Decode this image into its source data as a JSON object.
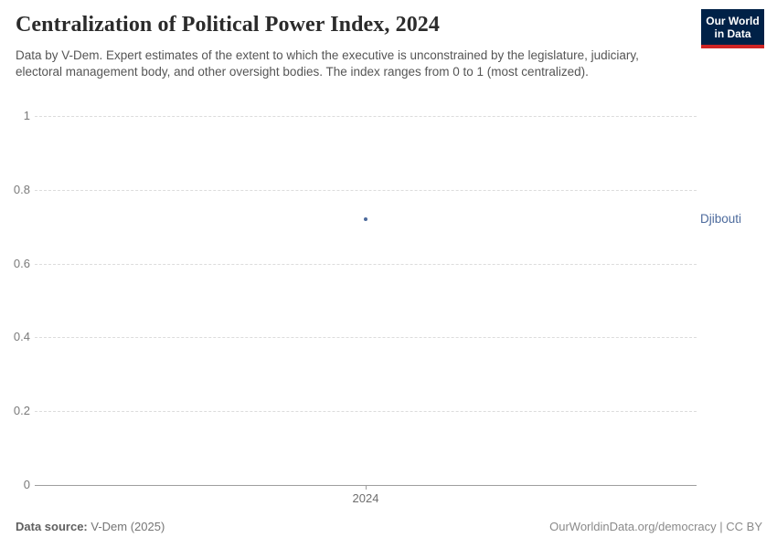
{
  "header": {
    "title": "Centralization of Political Power Index, 2024",
    "subtitle": "Data by V-Dem. Expert estimates of the extent to which the executive is unconstrained by the legislature, judiciary, electoral management body, and other oversight bodies. The index ranges from 0 to 1 (most centralized).",
    "logo": {
      "line1": "Our World",
      "line2": "in Data",
      "bg_color": "#002147",
      "bar_color": "#cf2424"
    }
  },
  "chart_data": {
    "type": "scatter",
    "title": "Centralization of Political Power Index, 2024",
    "xlabel": "",
    "ylabel": "",
    "x": [
      2024
    ],
    "series": [
      {
        "name": "Djibouti",
        "values": [
          0.72
        ],
        "color": "#4c6a9c"
      }
    ],
    "ylim": [
      0,
      1
    ],
    "yticks": [
      {
        "value": 0,
        "label": "0"
      },
      {
        "value": 0.2,
        "label": "0.2"
      },
      {
        "value": 0.4,
        "label": "0.4"
      },
      {
        "value": 0.6,
        "label": "0.6"
      },
      {
        "value": 0.8,
        "label": "0.8"
      },
      {
        "value": 1,
        "label": "1"
      }
    ],
    "xticks": [
      {
        "value": 2024,
        "label": "2024"
      }
    ],
    "grid": "horizontal-dashed",
    "legend_position": "entity-label-right"
  },
  "footer": {
    "source_label": "Data source:",
    "source_value": " V-Dem (2025)",
    "credit": "OurWorldinData.org/democracy | CC BY"
  },
  "colors": {
    "accent_blue": "#4c6a9c",
    "grid": "#dcdcdc",
    "axis": "#9e9e9e",
    "tick_label": "#7a7a7a",
    "subtitle_text": "#555555",
    "title_text": "#2b2b2b"
  }
}
